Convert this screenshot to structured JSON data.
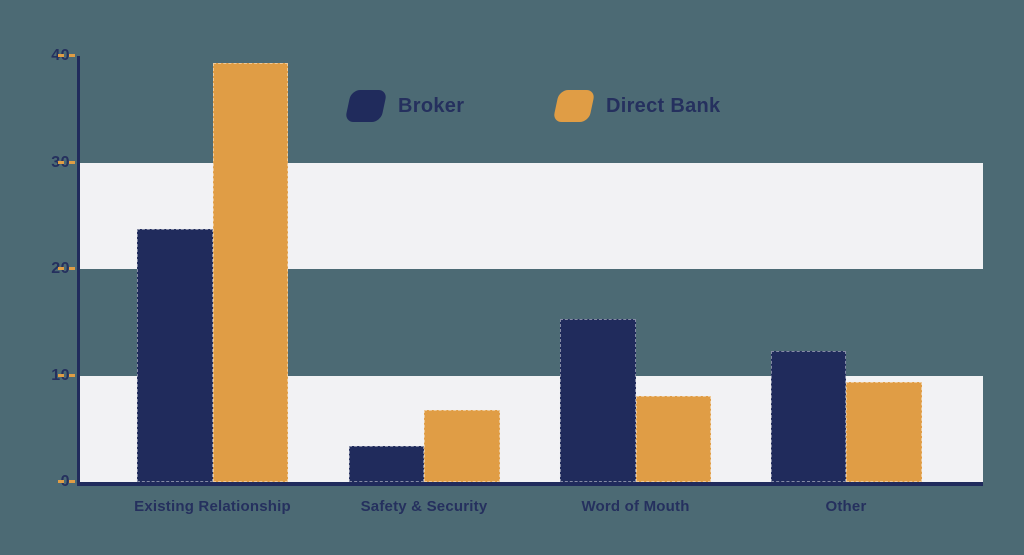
{
  "chart_data": {
    "type": "bar",
    "title": "",
    "categories": [
      "Existing Relationship",
      "Safety & Security",
      "Word of Mouth",
      "Other"
    ],
    "series": [
      {
        "name": "Broker",
        "color": "#202B5C",
        "values": [
          23.8,
          3.4,
          15.3,
          12.3
        ]
      },
      {
        "name": "Direct Bank",
        "color": "#E09D45",
        "values": [
          39.3,
          6.8,
          8.1,
          9.4
        ]
      }
    ],
    "xlabel": "",
    "ylabel": "",
    "ylim": [
      0,
      40
    ],
    "yticks": [
      40,
      30,
      20,
      10,
      0
    ],
    "grid_bands": [
      [
        0,
        10
      ],
      [
        20,
        30
      ]
    ],
    "legend_position": "top-center"
  },
  "colors": {
    "background": "#4C6A74",
    "band": "#F2F2F4",
    "navy": "#202B5C",
    "orange": "#E09D45",
    "tick_dash": "#E09D45",
    "label": "#25305E"
  },
  "legend": {
    "items": [
      {
        "label": "Broker"
      },
      {
        "label": "Direct Bank"
      }
    ]
  }
}
